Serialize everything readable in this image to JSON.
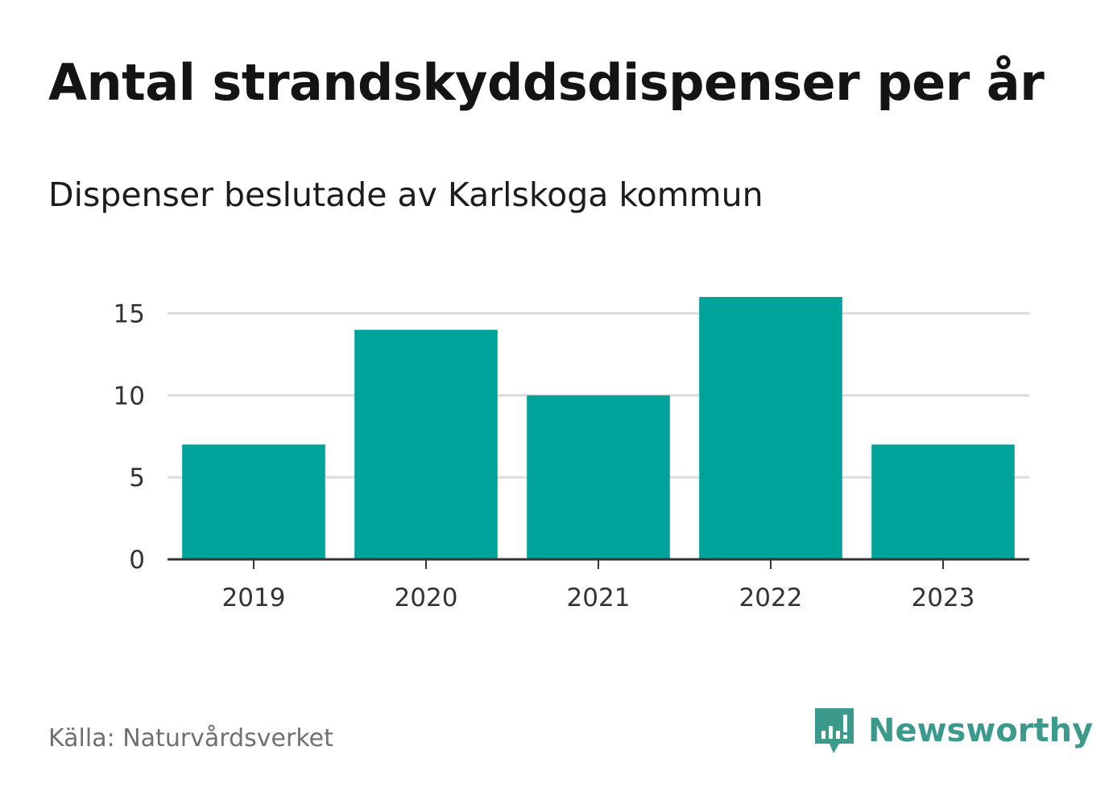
{
  "title": "Antal strandskyddsdispenser per år",
  "subtitle": "Dispenser beslutade av Karlskoga kommun",
  "source": "Källa: Naturvårdsverket",
  "brand": {
    "name": "Newsworthy",
    "icon": "newsworthy-logo-icon",
    "color": "#3c9a8d"
  },
  "colors": {
    "bar": "#00a39a",
    "grid": "#dcdcdc",
    "axis": "#333333"
  },
  "chart_data": {
    "type": "bar",
    "title": "Antal strandskyddsdispenser per år",
    "subtitle": "Dispenser beslutade av Karlskoga kommun",
    "categories": [
      "2019",
      "2020",
      "2021",
      "2022",
      "2023"
    ],
    "values": [
      7,
      14,
      10,
      16,
      7
    ],
    "yticks": [
      0,
      5,
      10,
      15
    ],
    "ylim": [
      0,
      16
    ],
    "xlabel": "",
    "ylabel": "",
    "grid": true,
    "legend": "none"
  }
}
